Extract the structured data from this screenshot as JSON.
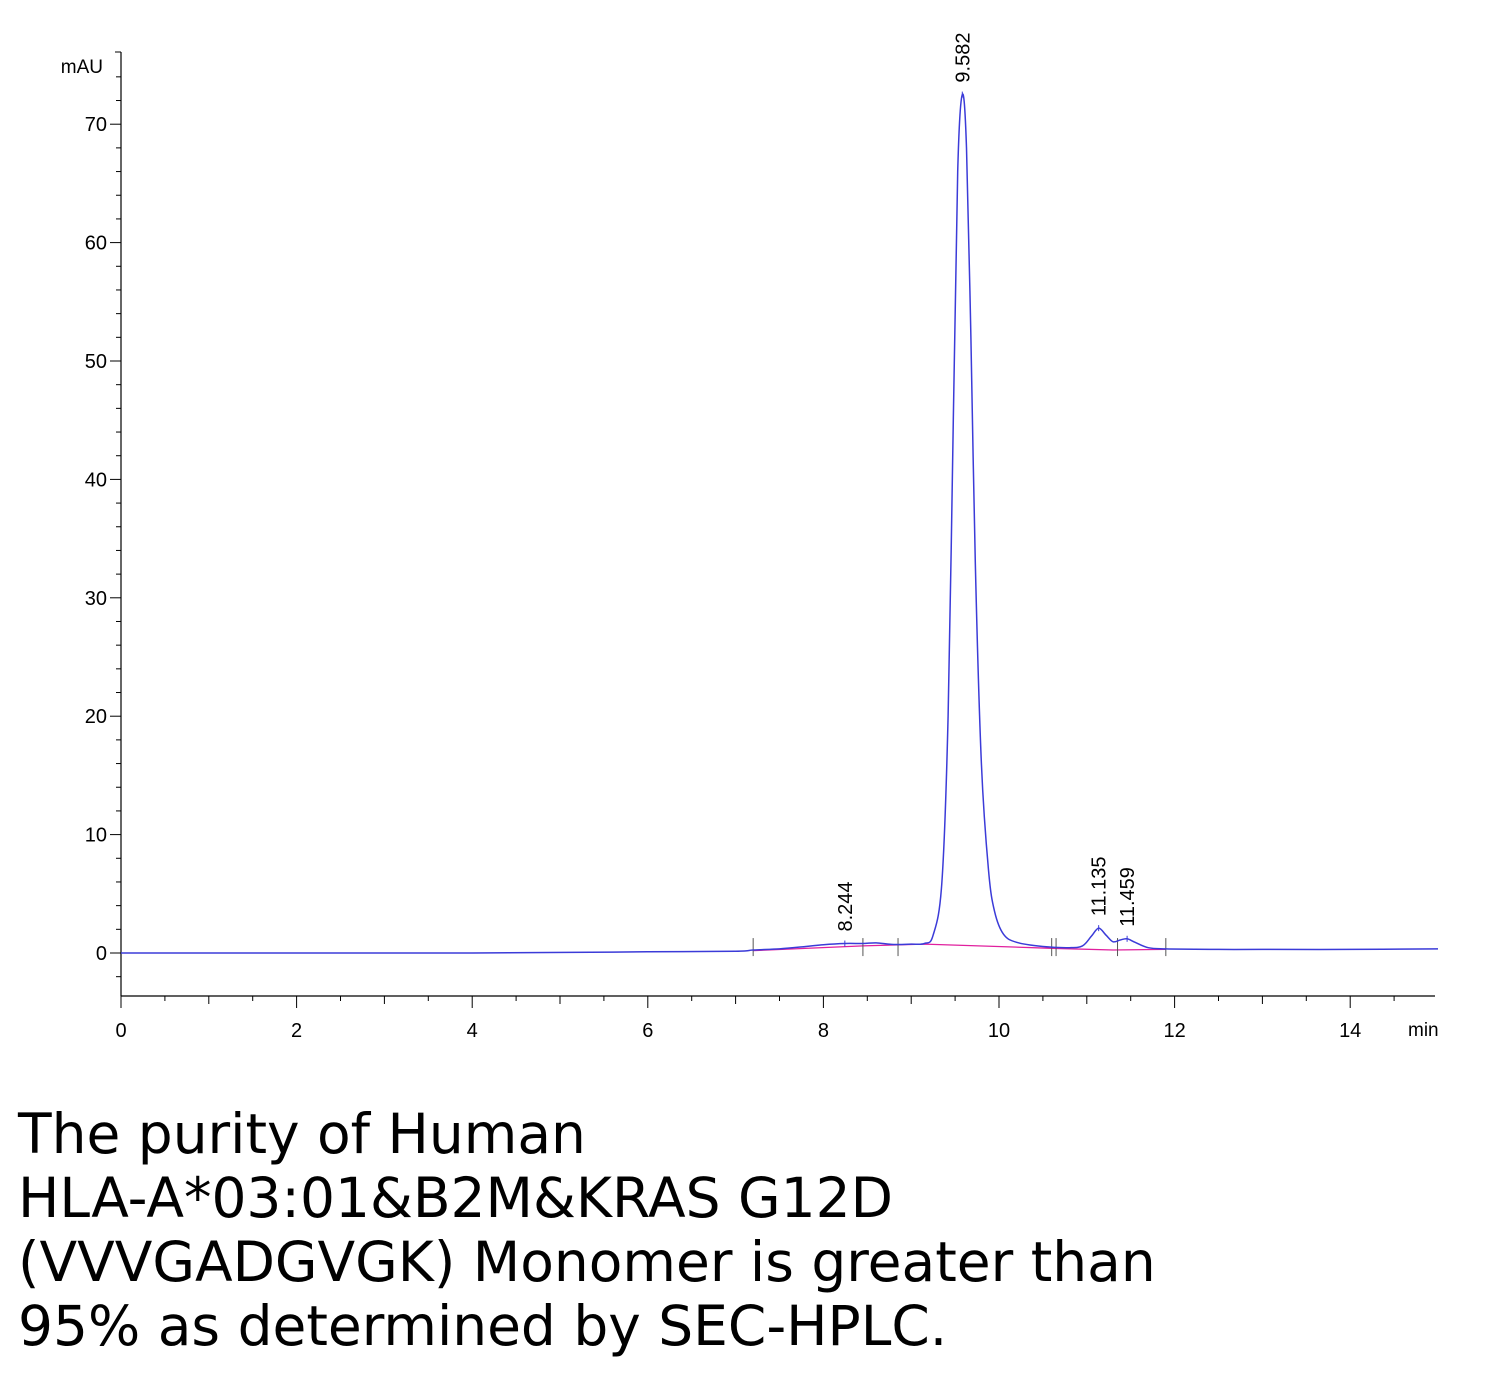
{
  "chart_data": {
    "type": "line",
    "ylabel": "mAU",
    "xlabel": "min",
    "xlim": [
      0,
      15
    ],
    "ylim": [
      -3.5,
      76
    ],
    "x_ticks": [
      0,
      2,
      4,
      6,
      8,
      10,
      12,
      14
    ],
    "y_ticks": [
      0,
      10,
      20,
      30,
      40,
      50,
      60,
      70
    ],
    "colors": {
      "signal": "#3b3bd8",
      "baseline": "#e0209e",
      "axis": "#000000"
    },
    "series": [
      {
        "points": [
          [
            0,
            0
          ],
          [
            0.5,
            0
          ],
          [
            1,
            0
          ],
          [
            2,
            0
          ],
          [
            4,
            0
          ],
          [
            5.1,
            0.05
          ],
          [
            6,
            0.1
          ],
          [
            7.0,
            0.15
          ],
          [
            7.2,
            0.25
          ],
          [
            7.5,
            0.35
          ],
          [
            7.8,
            0.55
          ],
          [
            8.0,
            0.7
          ],
          [
            8.244,
            0.8
          ],
          [
            8.45,
            0.8
          ],
          [
            8.6,
            0.85
          ],
          [
            8.8,
            0.72
          ],
          [
            9.0,
            0.75
          ],
          [
            9.15,
            0.8
          ],
          [
            9.25,
            1.5
          ],
          [
            9.35,
            6
          ],
          [
            9.42,
            20
          ],
          [
            9.48,
            45
          ],
          [
            9.53,
            66
          ],
          [
            9.582,
            72.5
          ],
          [
            9.63,
            68
          ],
          [
            9.68,
            52
          ],
          [
            9.73,
            33
          ],
          [
            9.8,
            16
          ],
          [
            9.88,
            7
          ],
          [
            9.95,
            3.5
          ],
          [
            10.05,
            1.6
          ],
          [
            10.2,
            0.9
          ],
          [
            10.5,
            0.55
          ],
          [
            10.8,
            0.45
          ],
          [
            10.95,
            0.6
          ],
          [
            11.05,
            1.4
          ],
          [
            11.135,
            2.1
          ],
          [
            11.22,
            1.5
          ],
          [
            11.3,
            0.95
          ],
          [
            11.38,
            1.1
          ],
          [
            11.459,
            1.2
          ],
          [
            11.55,
            0.9
          ],
          [
            11.7,
            0.45
          ],
          [
            11.9,
            0.35
          ],
          [
            12.5,
            0.3
          ],
          [
            13,
            0.3
          ],
          [
            14,
            0.3
          ],
          [
            15,
            0.35
          ]
        ]
      }
    ],
    "baseline": [
      [
        7.2,
        0.2
      ],
      [
        8.45,
        0.6
      ],
      [
        9.15,
        0.75
      ],
      [
        10.6,
        0.4
      ],
      [
        11.3,
        0.25
      ],
      [
        11.9,
        0.3
      ]
    ],
    "integration_marks": [
      7.2,
      8.45,
      8.85,
      10.6,
      10.65,
      11.35,
      11.9
    ],
    "peaks": [
      {
        "rt": 8.244,
        "label": "8.244",
        "height": 0.8
      },
      {
        "rt": 9.582,
        "label": "9.582",
        "height": 72.5
      },
      {
        "rt": 11.135,
        "label": "11.135",
        "height": 2.1
      },
      {
        "rt": 11.459,
        "label": "11.459",
        "height": 1.2
      }
    ]
  },
  "caption": {
    "lines": [
      "The purity of Human",
      "HLA-A*03:01&B2M&KRAS G12D",
      "(VVVGADGVGK) Monomer is greater than",
      "95% as determined by SEC-HPLC."
    ]
  }
}
